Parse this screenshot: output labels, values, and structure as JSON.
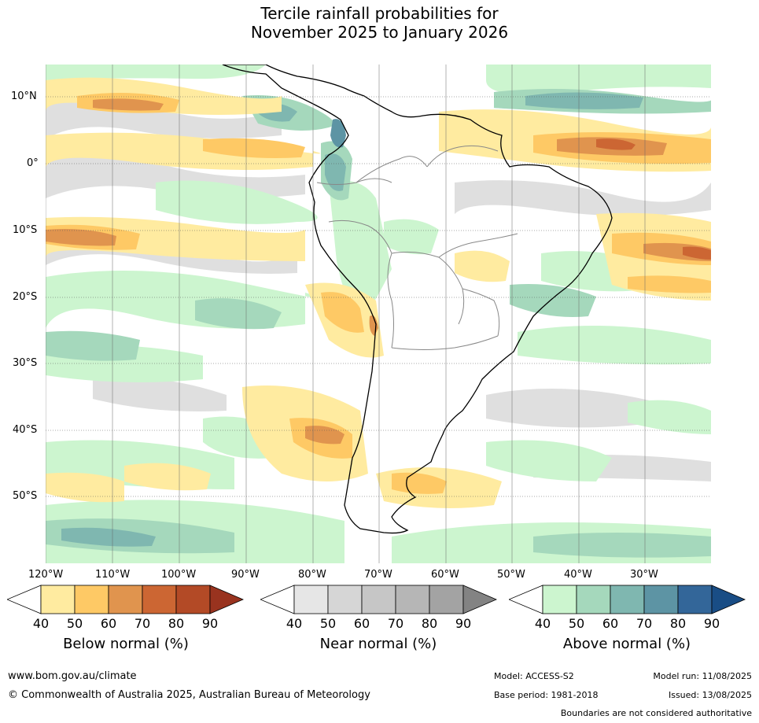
{
  "title": {
    "line1": "Tercile rainfall probabilities for",
    "line2": "November 2025 to January 2026"
  },
  "map": {
    "lat_labels": [
      "10°N",
      "0°",
      "10°S",
      "20°S",
      "30°S",
      "40°S",
      "50°S"
    ],
    "lon_labels": [
      "120°W",
      "110°W",
      "100°W",
      "90°W",
      "80°W",
      "70°W",
      "60°W",
      "50°W",
      "40°W",
      "30°W"
    ]
  },
  "colorbars": [
    {
      "title": "Below normal (%)",
      "ticks": [
        "40",
        "50",
        "60",
        "70",
        "80",
        "90"
      ],
      "colors": [
        "#ffffff",
        "#ffeba0",
        "#fec965",
        "#e0944e",
        "#cc6633",
        "#b34a26",
        "#99331f"
      ]
    },
    {
      "title": "Near normal (%)",
      "ticks": [
        "40",
        "50",
        "60",
        "70",
        "80",
        "90"
      ],
      "colors": [
        "#ffffff",
        "#e6e6e6",
        "#d6d6d6",
        "#c6c6c6",
        "#b6b6b6",
        "#a3a3a3",
        "#838383"
      ]
    },
    {
      "title": "Above normal (%)",
      "ticks": [
        "40",
        "50",
        "60",
        "70",
        "80",
        "90"
      ],
      "colors": [
        "#ffffff",
        "#ccf5cf",
        "#a5d8bc",
        "#7fb7b0",
        "#5d94a4",
        "#336699",
        "#194d85"
      ]
    }
  ],
  "footer": {
    "website": "www.bom.gov.au/climate",
    "copyright": "© Commonwealth of Australia 2025, Australian Bureau of Meteorology",
    "model": "Model: ACCESS-S2",
    "base_period": "Base period: 1981-2018",
    "model_run": "Model run: 11/08/2025",
    "issued": "Issued: 13/08/2025",
    "disclaimer": "Boundaries are not considered authoritative"
  }
}
